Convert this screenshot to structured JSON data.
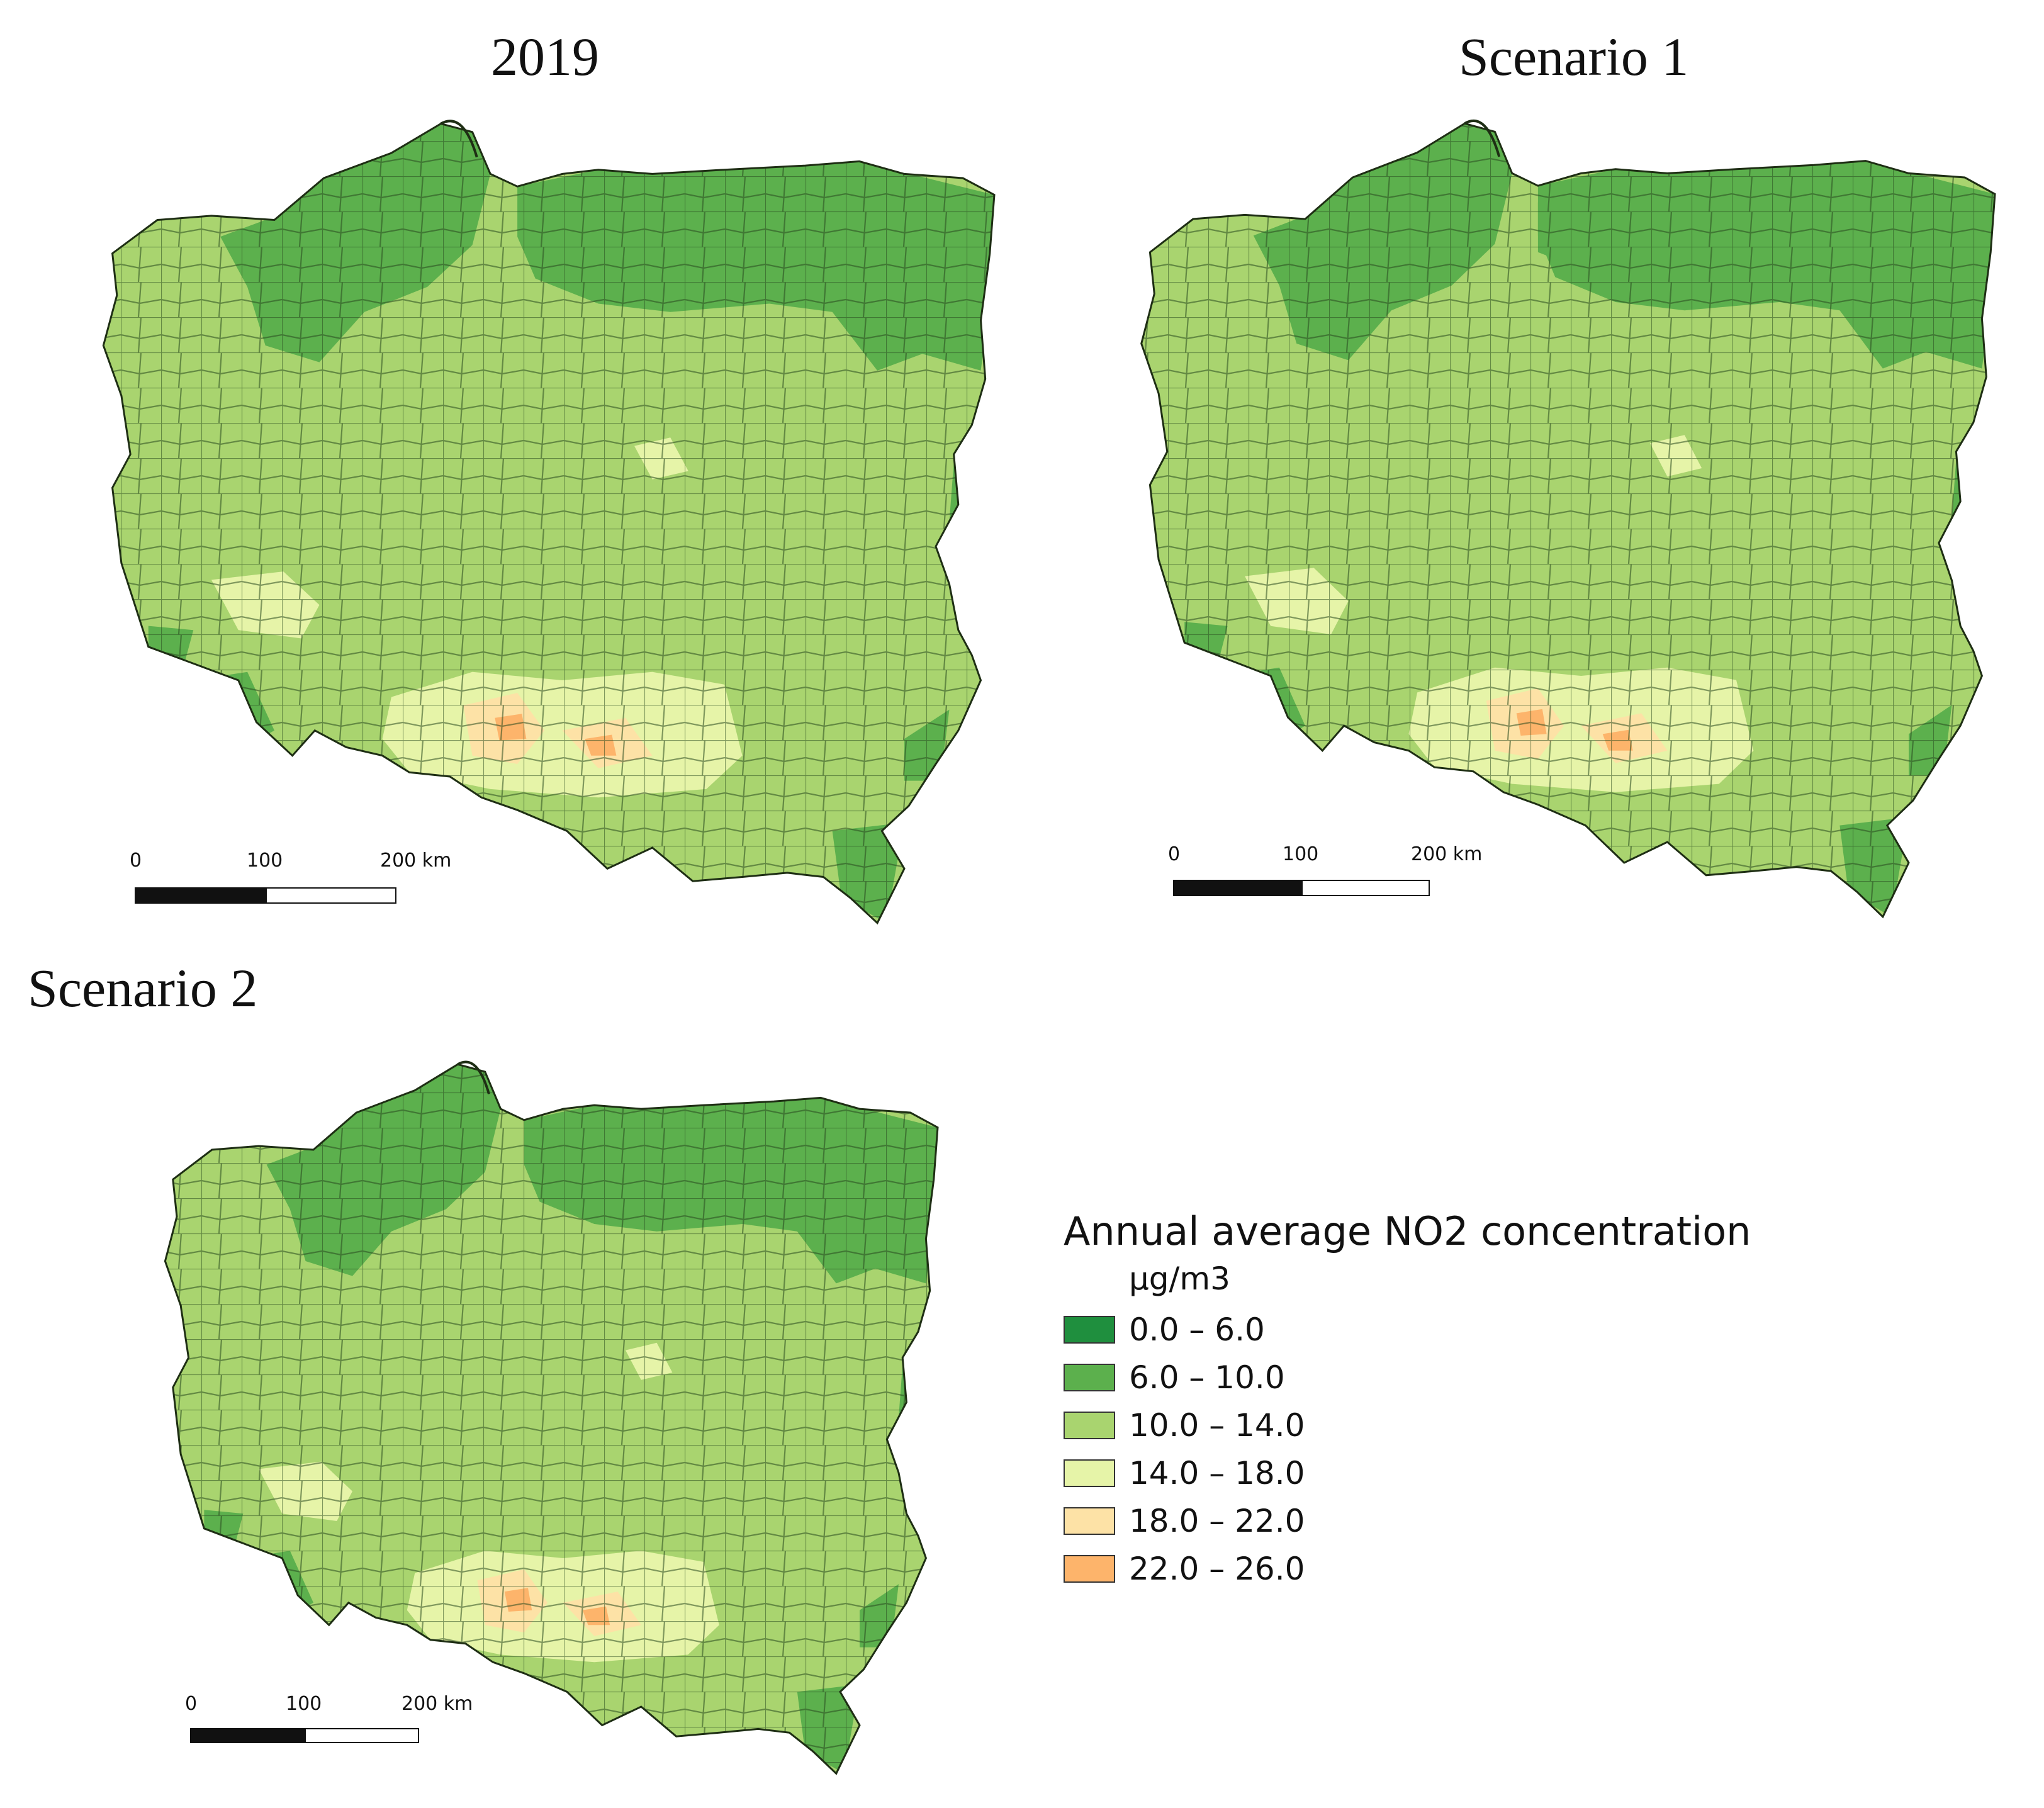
{
  "panels": [
    {
      "title": "2019"
    },
    {
      "title": "Scenario 1"
    },
    {
      "title": "Scenario 2"
    }
  ],
  "scalebar": {
    "tick_0": "0",
    "tick_1": "100",
    "tick_2": "200 km"
  },
  "legend": {
    "title": "Annual average NO2 concentration",
    "unit": "µg/m3",
    "classes": [
      {
        "label": "0.0 – 6.0",
        "color": "#1f8f3e"
      },
      {
        "label": "6.0 – 10.0",
        "color": "#5cb04d"
      },
      {
        "label": "10.0 – 14.0",
        "color": "#a9d46f"
      },
      {
        "label": "14.0 – 18.0",
        "color": "#e6f4a8"
      },
      {
        "label": "18.0 – 22.0",
        "color": "#fde2a6"
      },
      {
        "label": "22.0 – 26.0",
        "color": "#fdb46b"
      }
    ]
  }
}
